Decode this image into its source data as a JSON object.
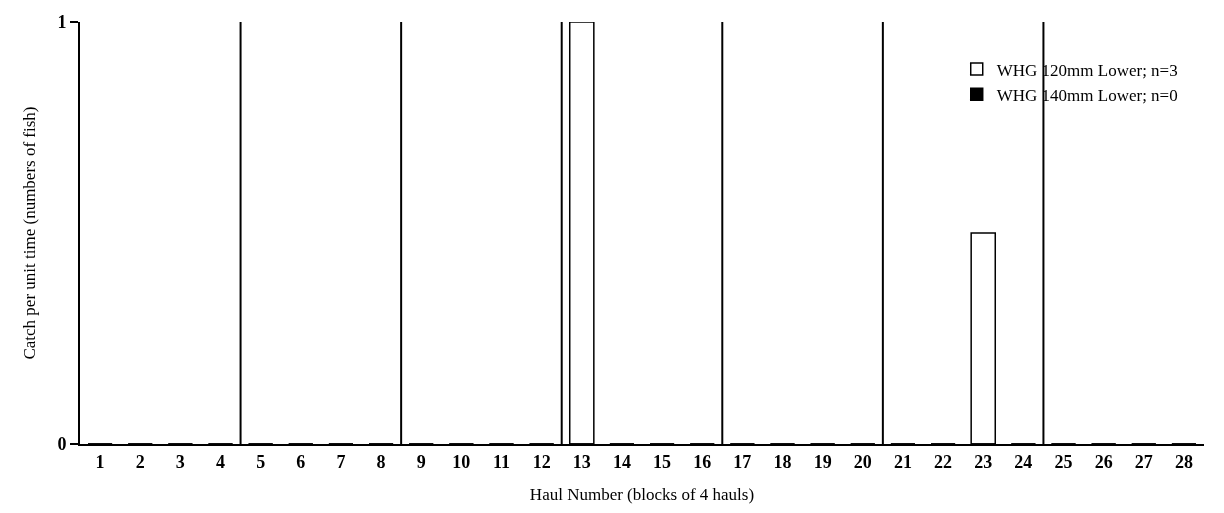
{
  "chart_data": {
    "type": "bar",
    "xlabel": "Haul Number (blocks of 4 hauls)",
    "ylabel": "Catch per unit time (numbers of fish)",
    "x": [
      1,
      2,
      3,
      4,
      5,
      6,
      7,
      8,
      9,
      10,
      11,
      12,
      13,
      14,
      15,
      16,
      17,
      18,
      19,
      20,
      21,
      22,
      23,
      24,
      25,
      26,
      27,
      28
    ],
    "xlim": [
      0.5,
      28.5
    ],
    "xticks": [
      1,
      2,
      3,
      4,
      5,
      6,
      7,
      8,
      9,
      10,
      11,
      12,
      13,
      14,
      15,
      16,
      17,
      18,
      19,
      20,
      21,
      22,
      23,
      24,
      25,
      26,
      27,
      28
    ],
    "ylim": [
      0,
      1
    ],
    "yticks": [
      0,
      1
    ],
    "series": [
      {
        "name": "WHG 120mm Lower; n=3",
        "color": "#ffffff",
        "values": [
          0,
          0,
          0,
          0,
          0,
          0,
          0,
          0,
          0,
          0,
          0,
          0,
          1,
          0,
          0,
          0,
          0,
          0,
          0,
          0,
          0,
          0,
          0.5,
          0,
          0,
          0,
          0,
          0
        ]
      },
      {
        "name": "WHG 140mm Lower; n=0",
        "color": "#000000",
        "values": [
          0,
          0,
          0,
          0,
          0,
          0,
          0,
          0,
          0,
          0,
          0,
          0,
          0,
          0,
          0,
          0,
          0,
          0,
          0,
          0,
          0,
          0,
          0,
          0,
          0,
          0,
          0,
          0
        ]
      }
    ],
    "ref_lines": [
      {
        "axis": "x",
        "value": 4.5,
        "color": "#000000"
      },
      {
        "axis": "x",
        "value": 8.5,
        "color": "#000000"
      },
      {
        "axis": "x",
        "value": 12.5,
        "color": "#000000"
      },
      {
        "axis": "x",
        "value": 16.5,
        "color": "#000000"
      },
      {
        "axis": "x",
        "value": 20.5,
        "color": "#000000"
      },
      {
        "axis": "x",
        "value": 24.5,
        "color": "#000000"
      }
    ],
    "grid": false,
    "legend": "top right"
  }
}
